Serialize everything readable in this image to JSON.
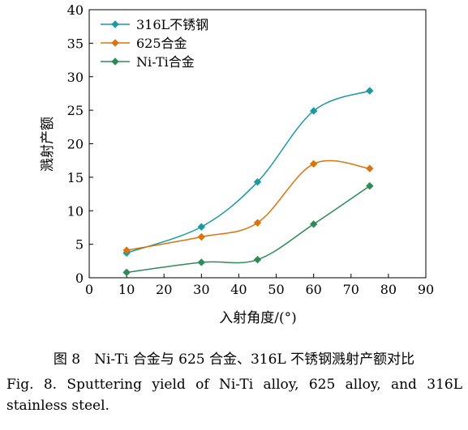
{
  "chart_data": {
    "type": "line",
    "xlabel": "入射角度/(°)",
    "ylabel": "溅射产额",
    "xlim": [
      0,
      90
    ],
    "ylim": [
      0,
      40
    ],
    "xticks": [
      0,
      10,
      20,
      30,
      40,
      50,
      60,
      70,
      80,
      90
    ],
    "yticks": [
      0,
      5,
      10,
      15,
      20,
      25,
      30,
      35,
      40
    ],
    "grid": false,
    "legend_position": "top-left",
    "x": [
      10,
      30,
      45,
      60,
      75
    ],
    "series": [
      {
        "name": "316L不锈钢",
        "color": "#1a9aa0",
        "marker": "diamond",
        "values": [
          3.7,
          7.6,
          14.3,
          24.9,
          27.9
        ]
      },
      {
        "name": "625合金",
        "color": "#d9750f",
        "marker": "diamond",
        "values": [
          4.1,
          6.1,
          8.2,
          17.0,
          16.3
        ]
      },
      {
        "name": "Ni-Ti合金",
        "color": "#2e8b57",
        "marker": "diamond",
        "values": [
          0.8,
          2.3,
          2.7,
          8.0,
          13.7
        ]
      }
    ]
  },
  "caption": {
    "zh": "图 8　Ni-Ti 合金与 625 合金、316L 不锈钢溅射产额对比",
    "en": "Fig. 8. Sputtering yield of Ni-Ti alloy, 625 alloy, and 316L stainless steel."
  }
}
